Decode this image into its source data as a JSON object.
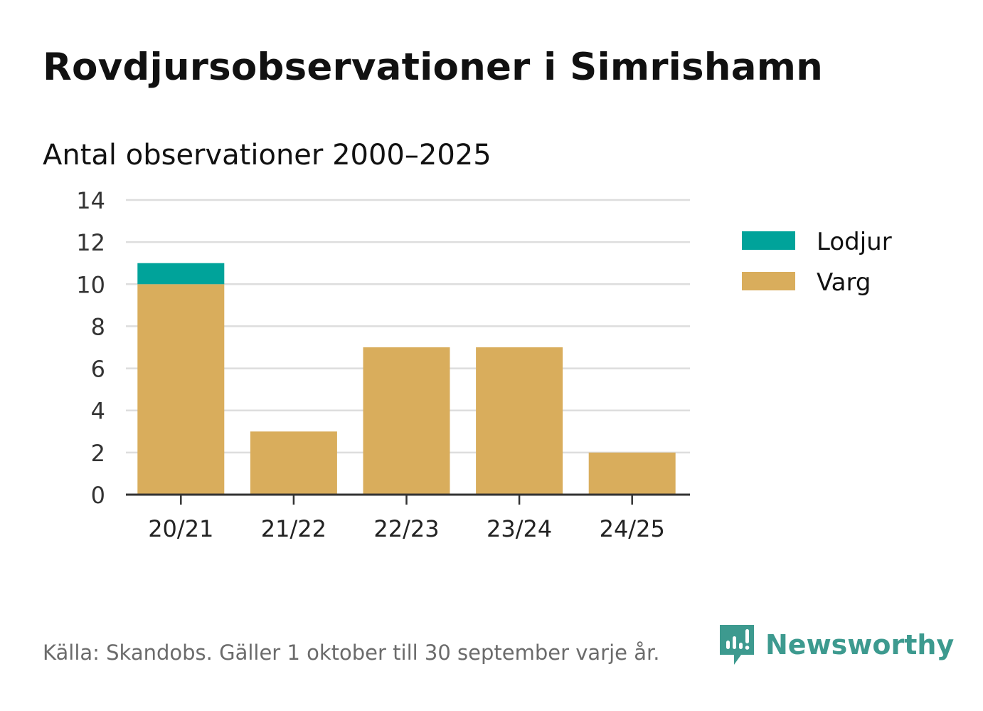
{
  "title": "Rovdjursobservationer i Simrishamn",
  "subtitle": "Antal observationer 2000–2025",
  "colors": {
    "lodjur": "#00a39a",
    "varg": "#d9ad5c",
    "grid": "#dddddd",
    "axis": "#333333",
    "text": "#111111",
    "muted": "#6b6b6b",
    "brand": "#3d9a8f"
  },
  "chart_data": {
    "type": "bar",
    "stacked": true,
    "title": "Rovdjursobservationer i Simrishamn",
    "subtitle": "Antal observationer 2000–2025",
    "categories": [
      "20/21",
      "21/22",
      "22/23",
      "23/24",
      "24/25"
    ],
    "series": [
      {
        "name": "Varg",
        "values": [
          10,
          3,
          7,
          7,
          2
        ]
      },
      {
        "name": "Lodjur",
        "values": [
          1,
          0,
          0,
          0,
          0
        ]
      }
    ],
    "legend": [
      "Lodjur",
      "Varg"
    ],
    "legend_position": "right",
    "ylim": [
      0,
      14
    ],
    "yticks": [
      0,
      2,
      4,
      6,
      8,
      10,
      12,
      14
    ],
    "grid": true,
    "xlabel": "",
    "ylabel": ""
  },
  "footer": {
    "source": "Källa: Skandobs. Gäller 1 oktober till 30 september varje år.",
    "brand": "Newsworthy",
    "brand_icon": "newsworthy-logo-icon"
  }
}
